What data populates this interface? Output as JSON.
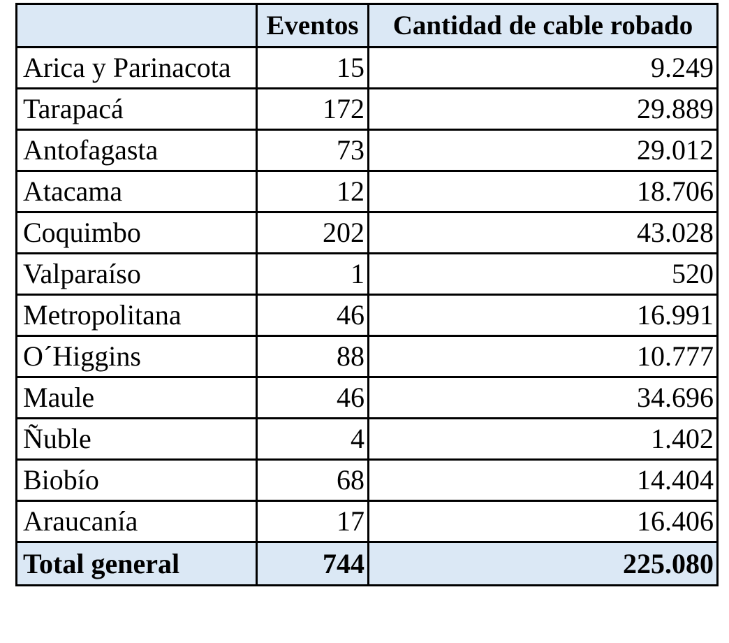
{
  "table": {
    "headers": [
      "",
      "Eventos",
      "Cantidad de cable robado"
    ],
    "rows": [
      {
        "region": "Arica y Parinacota",
        "eventos": "15",
        "cable": "9.249"
      },
      {
        "region": "Tarapacá",
        "eventos": "172",
        "cable": "29.889"
      },
      {
        "region": "Antofagasta",
        "eventos": "73",
        "cable": "29.012"
      },
      {
        "region": "Atacama",
        "eventos": "12",
        "cable": "18.706"
      },
      {
        "region": "Coquimbo",
        "eventos": "202",
        "cable": "43.028"
      },
      {
        "region": "Valparaíso",
        "eventos": "1",
        "cable": "520"
      },
      {
        "region": "Metropolitana",
        "eventos": "46",
        "cable": "16.991"
      },
      {
        "region": "O´Higgins",
        "eventos": "88",
        "cable": "10.777"
      },
      {
        "region": "Maule",
        "eventos": "46",
        "cable": "34.696"
      },
      {
        "region": "Ñuble",
        "eventos": "4",
        "cable": "1.402"
      },
      {
        "region": "Biobío",
        "eventos": "68",
        "cable": "14.404"
      },
      {
        "region": "Araucanía",
        "eventos": "17",
        "cable": "16.406"
      }
    ],
    "total": {
      "label": "Total general",
      "eventos": "744",
      "cable": "225.080"
    }
  },
  "colors": {
    "header_fill": "#dbe8f5",
    "border": "#000000",
    "text": "#000000"
  }
}
